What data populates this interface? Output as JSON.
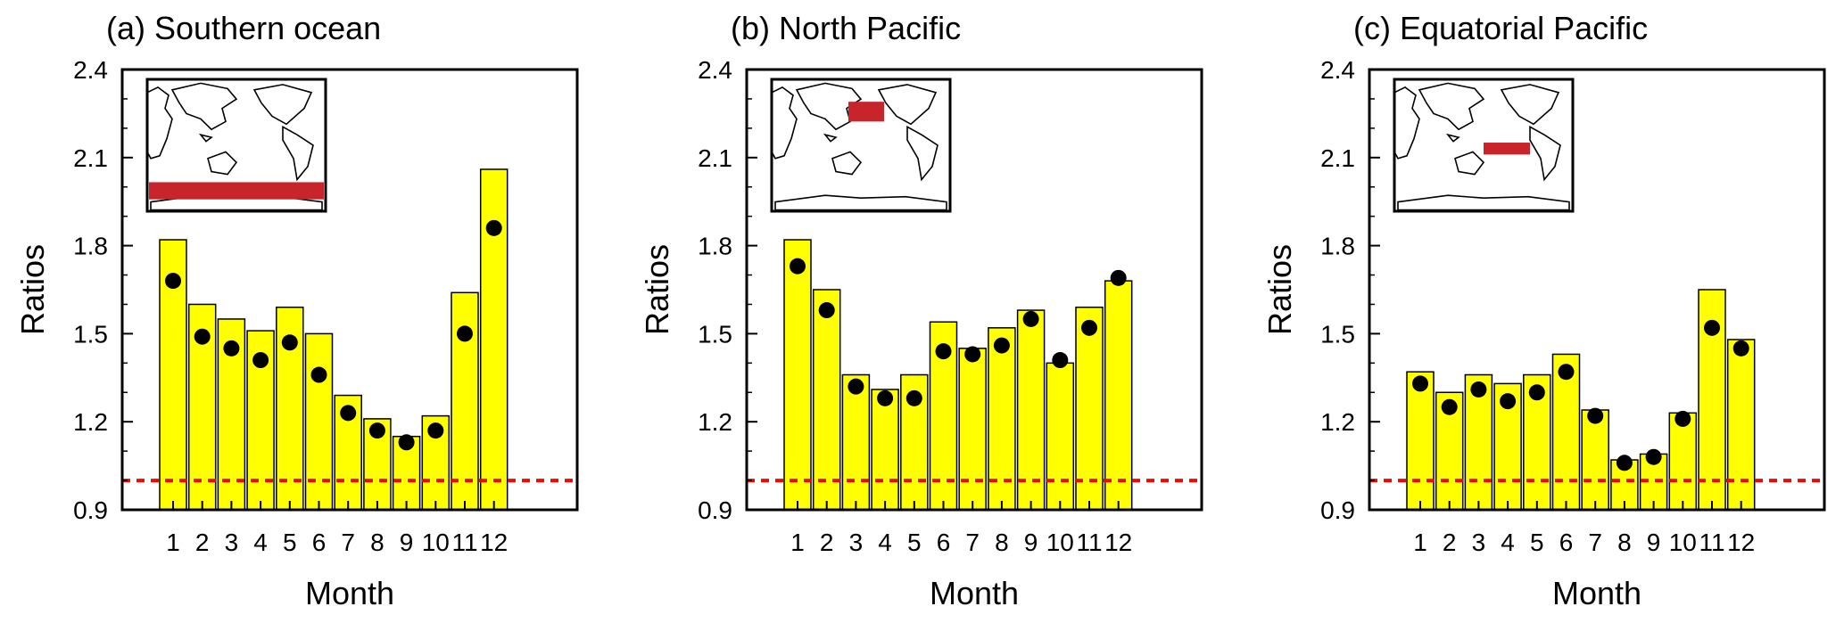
{
  "figure": {
    "panels": [
      {
        "title": "(a) Southern ocean",
        "xlabel": "Month",
        "ylabel": "Ratios",
        "inset": {
          "region_color": "#c8242b",
          "region": "Southern Ocean band"
        }
      },
      {
        "title": "(b) North Pacific",
        "xlabel": "Month",
        "ylabel": "Ratios",
        "inset": {
          "region_color": "#c8242b",
          "region": "North Pacific box"
        }
      },
      {
        "title": "(c) Equatorial Pacific",
        "xlabel": "Month",
        "ylabel": "Ratios",
        "inset": {
          "region_color": "#c8242b",
          "region": "Equatorial Pacific box"
        }
      }
    ]
  },
  "colors": {
    "bar_fill": "#ffff00",
    "bar_stroke": "#000000",
    "dot": "#000000",
    "reference_line": "#ff0000"
  },
  "chart_data": [
    {
      "type": "bar",
      "title": "(a) Southern ocean",
      "xlabel": "Month",
      "ylabel": "Ratios",
      "categories": [
        "1",
        "2",
        "3",
        "4",
        "5",
        "6",
        "7",
        "8",
        "9",
        "10",
        "11",
        "12"
      ],
      "ylim": [
        0.9,
        2.4
      ],
      "yticks": [
        "0.9",
        "1.2",
        "1.5",
        "1.8",
        "2.1",
        "2.4"
      ],
      "series": [
        {
          "kind": "bar",
          "values": [
            1.82,
            1.6,
            1.55,
            1.51,
            1.59,
            1.5,
            1.29,
            1.21,
            1.15,
            1.22,
            1.64,
            2.06
          ]
        },
        {
          "kind": "dot",
          "values": [
            1.68,
            1.49,
            1.45,
            1.41,
            1.47,
            1.36,
            1.23,
            1.17,
            1.13,
            1.17,
            1.5,
            1.86
          ]
        }
      ],
      "reference_line": 1.0,
      "grid": false
    },
    {
      "type": "bar",
      "title": "(b) North Pacific",
      "xlabel": "Month",
      "ylabel": "Ratios",
      "categories": [
        "1",
        "2",
        "3",
        "4",
        "5",
        "6",
        "7",
        "8",
        "9",
        "10",
        "11",
        "12"
      ],
      "ylim": [
        0.9,
        2.4
      ],
      "yticks": [
        "0.9",
        "1.2",
        "1.5",
        "1.8",
        "2.1",
        "2.4"
      ],
      "series": [
        {
          "kind": "bar",
          "values": [
            1.82,
            1.65,
            1.36,
            1.31,
            1.36,
            1.54,
            1.45,
            1.52,
            1.58,
            1.4,
            1.59,
            1.68
          ]
        },
        {
          "kind": "dot",
          "values": [
            1.73,
            1.58,
            1.32,
            1.28,
            1.28,
            1.44,
            1.43,
            1.46,
            1.55,
            1.41,
            1.52,
            1.69
          ]
        }
      ],
      "reference_line": 1.0,
      "grid": false
    },
    {
      "type": "bar",
      "title": "(c) Equatorial Pacific",
      "xlabel": "Month",
      "ylabel": "Ratios",
      "categories": [
        "1",
        "2",
        "3",
        "4",
        "5",
        "6",
        "7",
        "8",
        "9",
        "10",
        "11",
        "12"
      ],
      "ylim": [
        0.9,
        2.4
      ],
      "yticks": [
        "0.9",
        "1.2",
        "1.5",
        "1.8",
        "2.1",
        "2.4"
      ],
      "series": [
        {
          "kind": "bar",
          "values": [
            1.37,
            1.3,
            1.36,
            1.33,
            1.36,
            1.43,
            1.24,
            1.07,
            1.09,
            1.23,
            1.65,
            1.48
          ]
        },
        {
          "kind": "dot",
          "values": [
            1.33,
            1.25,
            1.31,
            1.27,
            1.3,
            1.37,
            1.22,
            1.06,
            1.08,
            1.21,
            1.52,
            1.45
          ]
        }
      ],
      "reference_line": 1.0,
      "grid": false
    }
  ]
}
